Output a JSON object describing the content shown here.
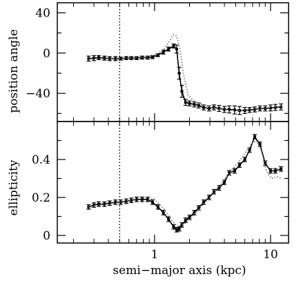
{
  "chart_data": [
    {
      "type": "line",
      "ylabel": "position angle",
      "xlabel": "",
      "xscale": "log",
      "xlim": [
        0.145,
        14.3
      ],
      "ylim": [
        -68,
        50
      ],
      "yticks": [
        40,
        0,
        -40
      ],
      "ytick_labels": [
        "40",
        "0",
        "−40"
      ],
      "reference_x": 0.5,
      "series": [
        {
          "style": "solid-with-error-bars",
          "x": [
            0.27,
            0.3,
            0.33,
            0.37,
            0.41,
            0.46,
            0.51,
            0.57,
            0.63,
            0.7,
            0.78,
            0.87,
            0.96,
            1.07,
            1.19,
            1.32,
            1.46,
            1.55,
            1.63,
            1.72,
            1.85,
            2.0,
            2.2,
            2.4,
            2.65,
            2.95,
            3.25,
            3.6,
            4.0,
            4.4,
            4.9,
            5.4,
            6.0,
            6.6,
            7.3,
            8.1,
            9.0,
            10.0,
            11.0,
            12.3
          ],
          "y": [
            -5.5,
            -5.0,
            -4.5,
            -5.0,
            -5.5,
            -5.5,
            -5.5,
            -5.0,
            -5.0,
            -5.0,
            -4.5,
            -4.5,
            -4.0,
            -2.0,
            1.0,
            4.0,
            7.0,
            4.0,
            -20.0,
            -38.0,
            -49.0,
            -50.0,
            -51.0,
            -52.0,
            -54.0,
            -55.0,
            -54.0,
            -55.0,
            -56.0,
            -56.0,
            -56.5,
            -57.0,
            -57.0,
            -56.5,
            -56.0,
            -55.0,
            -55.0,
            -54.5,
            -54.0,
            -53.5
          ],
          "err": [
            2.5,
            2.5,
            2.0,
            2.0,
            2.0,
            2.0,
            1.5,
            1.5,
            1.5,
            1.5,
            1.5,
            1.5,
            1.5,
            1.5,
            2.0,
            2.0,
            2.0,
            4.0,
            6.0,
            6.0,
            3.0,
            2.5,
            2.5,
            2.5,
            2.5,
            2.5,
            2.5,
            3.0,
            3.0,
            3.5,
            4.0,
            4.0,
            3.0,
            2.5,
            2.5,
            2.5,
            2.5,
            3.0,
            3.0,
            3.0
          ]
        },
        {
          "style": "dotted",
          "x": [
            0.27,
            0.4,
            0.6,
            0.85,
            1.05,
            1.2,
            1.35,
            1.45,
            1.55,
            1.65,
            1.78,
            1.95,
            2.2,
            2.6,
            3.1,
            3.8,
            4.6,
            5.6,
            6.8,
            8.2,
            10.0,
            12.3
          ],
          "y": [
            -6.0,
            -5.5,
            -5.0,
            -4.0,
            -1.0,
            4.0,
            12.0,
            18.0,
            17.0,
            5.0,
            -22.0,
            -42.0,
            -48.0,
            -51.0,
            -54.0,
            -56.0,
            -57.0,
            -57.0,
            -56.0,
            -55.0,
            -54.0,
            -53.0
          ]
        }
      ]
    },
    {
      "type": "line",
      "ylabel": "ellipticity",
      "xlabel": "semi−major axis (kpc)",
      "xscale": "log",
      "xlim": [
        0.145,
        14.3
      ],
      "ylim": [
        -0.04,
        0.6
      ],
      "xticks": [
        1,
        10
      ],
      "xtick_labels": [
        "1",
        "10"
      ],
      "yticks": [
        0,
        0.2,
        0.4
      ],
      "ytick_labels": [
        "0",
        "0.2",
        "0.4"
      ],
      "reference_x": 0.5,
      "series": [
        {
          "style": "solid-with-error-bars",
          "x": [
            0.27,
            0.3,
            0.33,
            0.37,
            0.41,
            0.46,
            0.51,
            0.57,
            0.63,
            0.7,
            0.78,
            0.87,
            0.96,
            1.07,
            1.19,
            1.32,
            1.46,
            1.55,
            1.63,
            1.72,
            1.85,
            2.0,
            2.2,
            2.4,
            2.65,
            2.95,
            3.25,
            3.6,
            4.0,
            4.4,
            4.9,
            5.4,
            6.0,
            6.6,
            7.3,
            8.1,
            9.0,
            10.0,
            11.0,
            12.3
          ],
          "y": [
            0.15,
            0.16,
            0.165,
            0.165,
            0.17,
            0.175,
            0.175,
            0.18,
            0.185,
            0.19,
            0.19,
            0.19,
            0.175,
            0.15,
            0.12,
            0.085,
            0.045,
            0.03,
            0.035,
            0.055,
            0.08,
            0.095,
            0.12,
            0.145,
            0.175,
            0.2,
            0.23,
            0.25,
            0.28,
            0.33,
            0.34,
            0.37,
            0.4,
            0.45,
            0.52,
            0.48,
            0.38,
            0.34,
            0.34,
            0.35
          ]
        },
        {
          "style": "dotted",
          "x": [
            0.27,
            0.4,
            0.6,
            0.85,
            1.0,
            1.2,
            1.4,
            1.6,
            1.85,
            2.2,
            2.6,
            3.1,
            3.7,
            4.4,
            5.2,
            6.0,
            6.8,
            7.5,
            8.3,
            9.2,
            10.2,
            11.5,
            12.3
          ],
          "y": [
            0.15,
            0.165,
            0.185,
            0.2,
            0.19,
            0.14,
            0.08,
            0.045,
            0.065,
            0.11,
            0.16,
            0.21,
            0.27,
            0.33,
            0.38,
            0.43,
            0.48,
            0.5,
            0.45,
            0.34,
            0.3,
            0.31,
            0.3
          ]
        }
      ]
    }
  ]
}
